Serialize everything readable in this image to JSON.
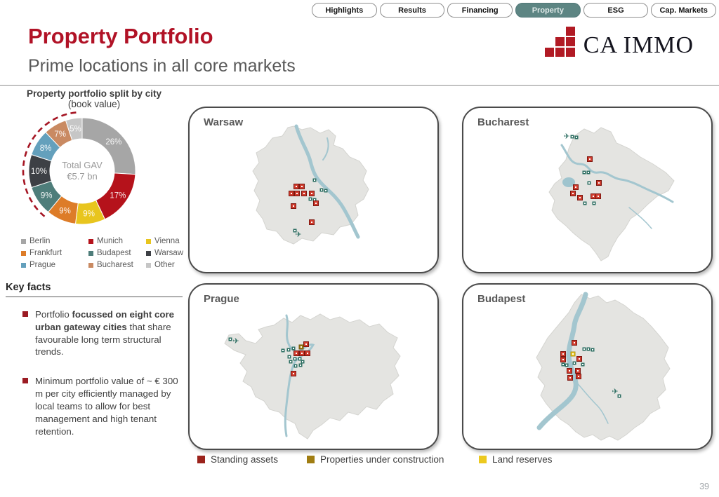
{
  "tabs": {
    "active": "Property",
    "items": [
      {
        "label": "Highlights"
      },
      {
        "label": "Results"
      },
      {
        "label": "Financing"
      },
      {
        "label": "Property"
      },
      {
        "label": "ESG"
      },
      {
        "label": "Cap. Markets"
      }
    ]
  },
  "header": {
    "title": "Property Portfolio",
    "subtitle": "Prime locations in all core markets",
    "logo_text": "CA IMMO",
    "title_color": "#b11226",
    "logo_red": "#b11a24",
    "active_tab_color": "#5d8583"
  },
  "chart_data": {
    "type": "pie",
    "title": "Property portfolio split by city",
    "subtitle": "(book value)",
    "center_label": "Total GAV",
    "center_value": "€5.7 bn",
    "legend_position": "below",
    "segments": [
      {
        "label": "Berlin",
        "value": 26,
        "color": "#a6a6a6"
      },
      {
        "label": "Munich",
        "value": 17,
        "color": "#b5121b"
      },
      {
        "label": "Vienna",
        "value": 9,
        "color": "#e8c51e"
      },
      {
        "label": "Frankfurt",
        "value": 9,
        "color": "#dd7c28"
      },
      {
        "label": "Budapest",
        "value": 9,
        "color": "#4e7d7a"
      },
      {
        "label": "Warsaw",
        "value": 10,
        "color": "#3d4045"
      },
      {
        "label": "Prague",
        "value": 8,
        "color": "#64a0bc"
      },
      {
        "label": "Bucharest",
        "value": 7,
        "color": "#c98a62"
      },
      {
        "label": "Other",
        "value": 5,
        "color": "#c6c6c6"
      }
    ],
    "highlight_arc": {
      "start_pct": 61,
      "end_pct": 99.3,
      "color": "#a51523"
    }
  },
  "key_facts": {
    "heading": "Key facts",
    "bullets": [
      {
        "pre": "Portfolio ",
        "bold": "focussed on eight core urban gateway cities",
        "post": " that share favourable long term structural trends."
      },
      {
        "pre": "Minimum portfolio value of ~ € 300 m per city efficiently managed by local teams to allow for best management and high tenant retention.",
        "bold": "",
        "post": ""
      }
    ]
  },
  "maps": {
    "cities": [
      {
        "name": "Warsaw",
        "standing": [
          [
            152,
            112
          ],
          [
            160,
            112
          ],
          [
            145,
            122
          ],
          [
            153,
            122
          ],
          [
            163,
            122
          ],
          [
            174,
            122
          ],
          [
            180,
            136
          ],
          [
            148,
            140
          ],
          [
            174,
            163
          ]
        ],
        "construction": [],
        "reserves": [],
        "landmarks": [
          [
            178,
            103
          ],
          [
            188,
            117
          ],
          [
            194,
            118
          ],
          [
            172,
            130
          ],
          [
            178,
            131
          ],
          [
            150,
            175
          ]
        ],
        "airports": [
          [
            155,
            180
          ]
        ]
      },
      {
        "name": "Bucharest",
        "standing": [
          [
            180,
            73
          ],
          [
            193,
            107
          ],
          [
            160,
            113
          ],
          [
            156,
            122
          ],
          [
            166,
            128
          ],
          [
            185,
            126
          ],
          [
            192,
            126
          ]
        ],
        "construction": [],
        "reserves": [],
        "landmarks": [
          [
            155,
            41
          ],
          [
            161,
            42
          ],
          [
            172,
            92
          ],
          [
            178,
            92
          ],
          [
            179,
            107
          ],
          [
            173,
            136
          ],
          [
            186,
            136
          ]
        ],
        "airports": [
          [
            147,
            40
          ]
        ]
      },
      {
        "name": "Prague",
        "standing": [
          [
            166,
            85
          ],
          [
            152,
            98
          ],
          [
            160,
            98
          ],
          [
            168,
            98
          ],
          [
            148,
            127
          ]
        ],
        "construction": [
          [
            159,
            89
          ]
        ],
        "reserves": [],
        "landmarks": [
          [
            133,
            94
          ],
          [
            141,
            93
          ],
          [
            148,
            91
          ],
          [
            142,
            103
          ],
          [
            150,
            106
          ],
          [
            157,
            106
          ],
          [
            161,
            110
          ],
          [
            158,
            115
          ],
          [
            151,
            116
          ],
          [
            144,
            110
          ],
          [
            58,
            78
          ]
        ],
        "airports": [
          [
            66,
            80
          ]
        ]
      },
      {
        "name": "Budapest",
        "standing": [
          [
            158,
            83
          ],
          [
            142,
            99
          ],
          [
            142,
            107
          ],
          [
            165,
            106
          ],
          [
            151,
            123
          ],
          [
            163,
            123
          ],
          [
            152,
            133
          ],
          [
            164,
            131
          ]
        ],
        "construction": [],
        "reserves": [
          [
            156,
            99
          ]
        ],
        "landmarks": [
          [
            172,
            92
          ],
          [
            178,
            92
          ],
          [
            184,
            93
          ],
          [
            158,
            112
          ],
          [
            170,
            114
          ],
          [
            142,
            114
          ],
          [
            147,
            115
          ],
          [
            222,
            159
          ]
        ],
        "airports": [
          [
            216,
            152
          ]
        ]
      }
    ],
    "legend": [
      {
        "label": "Standing assets",
        "color": "#9b231c"
      },
      {
        "label": "Properties under construction",
        "color": "#a07d12"
      },
      {
        "label": "Land reserves",
        "color": "#ecc91f"
      }
    ]
  },
  "page_number": "39"
}
